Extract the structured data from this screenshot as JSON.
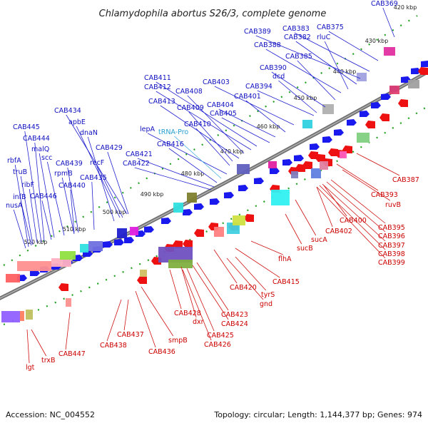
{
  "title": "Chlamydophila abortus S26/3, complete genome",
  "footer": {
    "accession": "Accession: NC_004552",
    "topology": "Topology: circular; Length: 1,144,377 bp; Genes: 974"
  },
  "ruler_ticks": [
    "420 kbp",
    "430 kbp",
    "440 kbp",
    "450 kbp",
    "460 kbp",
    "470 kbp",
    "480 kbp",
    "490 kbp",
    "500 kbp",
    "510 kbp",
    "520 kbp"
  ],
  "top_labels": [
    "CAB369",
    "CAB375",
    "CAB383",
    "CAB389",
    "CAB382",
    "rluC",
    "CAB388",
    "CAB385",
    "CAB390",
    "dcd",
    "CAB403",
    "CAB394",
    "CAB411",
    "CAB401",
    "CAB412",
    "CAB408",
    "CAB404",
    "CAB413",
    "CAB409",
    "CAB405",
    "CAB434",
    "apbE",
    "dnaN",
    "lepA",
    "tRNA-Pro",
    "CAB410",
    "CAB445",
    "CAB416",
    "CAB429",
    "CAB444",
    "recF",
    "CAB421",
    "malQ",
    "scc",
    "CAB422",
    "rbfA",
    "CAB439",
    "truB",
    "rpmB",
    "CAB435",
    "ribF",
    "CAB440",
    "infB",
    "CAB446",
    "nusA"
  ],
  "bottom_labels": [
    "CAB387",
    "CAB393",
    "ruvB",
    "CAB400",
    "CAB395",
    "CAB402",
    "CAB396",
    "sucA",
    "CAB397",
    "CAB398",
    "CAB399",
    "sucB",
    "flhA",
    "CAB415",
    "CAB420",
    "tyrS",
    "gnd",
    "CAB428",
    "CAB423",
    "dxr",
    "CAB424",
    "CAB425",
    "CAB426",
    "CAB437",
    "smpB",
    "CAB438",
    "CAB436",
    "CAB447",
    "trxB",
    "lgt"
  ],
  "colors": {
    "backbone": "#7a7a7a",
    "forward_genes": "#1a1aee",
    "reverse_genes": "#ee1111",
    "ruler_dots": "#22aa22"
  }
}
